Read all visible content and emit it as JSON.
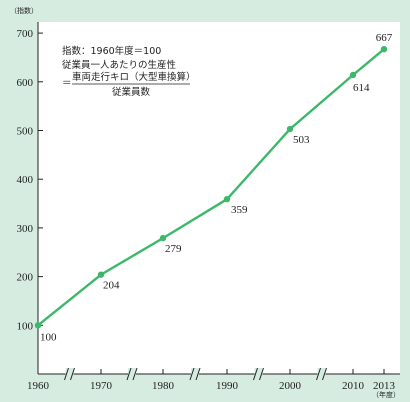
{
  "chart_data": {
    "type": "line",
    "y_unit_label": "（指数）",
    "x_unit_label": "（年度）",
    "x": [
      1960,
      1970,
      1980,
      1990,
      2000,
      2010,
      2013
    ],
    "values": [
      100,
      204,
      279,
      359,
      503,
      614,
      667
    ],
    "x_ticks": [
      "1960",
      "1970",
      "1980",
      "1990",
      "2000",
      "2010",
      "2013"
    ],
    "y_ticks": [
      100,
      200,
      300,
      400,
      500,
      600,
      700
    ],
    "ylim": [
      0,
      720
    ],
    "axis_break_marks": true,
    "grid": false,
    "line_color": "#3db86a",
    "background": "#d6ece0",
    "plot_background": "#ffffff",
    "annotation": {
      "line1": "指数：1960年度＝100",
      "line2": "従業員一人あたりの生産性",
      "prefix": "＝",
      "numerator": "車両走行キロ（大型車換算）",
      "denominator": "従業員数"
    }
  }
}
